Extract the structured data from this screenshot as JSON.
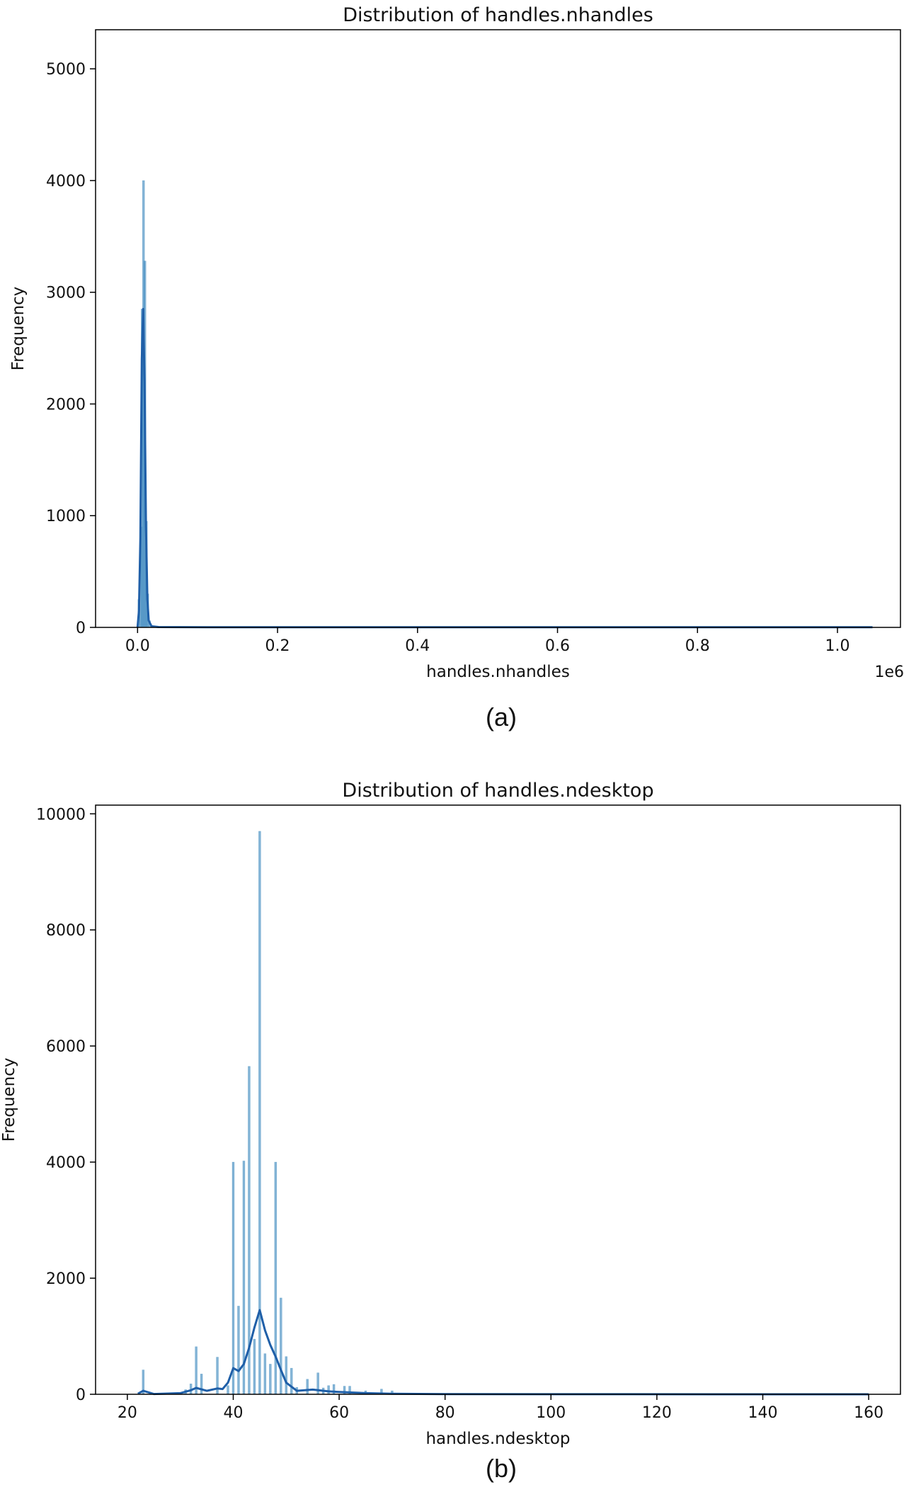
{
  "colors": {
    "bar": "#1f77b4",
    "kde": "#1f5fa8",
    "axis": "#000000"
  },
  "chart_data": [
    {
      "type": "bar",
      "title": "Distribution of handles.nhandles",
      "xlabel": "handles.nhandles",
      "ylabel": "Frequency",
      "x_offset_label": "1e6",
      "caption": "(a)",
      "xlim": [
        -60000,
        1090000
      ],
      "ylim": [
        0,
        5350
      ],
      "x_ticks": [
        0,
        200000,
        400000,
        600000,
        800000,
        1000000
      ],
      "x_tick_labels": [
        "0.0",
        "0.2",
        "0.4",
        "0.6",
        "0.8",
        "1.0"
      ],
      "y_ticks": [
        0,
        1000,
        2000,
        3000,
        4000,
        5000
      ],
      "y_tick_labels": [
        "0",
        "1000",
        "2000",
        "3000",
        "4000",
        "5000"
      ],
      "bars": [
        {
          "x": 2000,
          "value": 250
        },
        {
          "x": 4500,
          "value": 900
        },
        {
          "x": 6500,
          "value": 2850
        },
        {
          "x": 8500,
          "value": 4000
        },
        {
          "x": 10500,
          "value": 3280
        },
        {
          "x": 12500,
          "value": 950
        },
        {
          "x": 14500,
          "value": 300
        },
        {
          "x": 17000,
          "value": 60
        }
      ],
      "kde": {
        "x": [
          0,
          2000,
          4000,
          6000,
          8000,
          10000,
          12000,
          14000,
          16000,
          20000,
          30000,
          100000,
          1050000
        ],
        "y": [
          0,
          150,
          800,
          2400,
          2850,
          2200,
          900,
          250,
          60,
          10,
          3,
          1,
          1
        ]
      }
    },
    {
      "type": "bar",
      "title": "Distribution of handles.ndesktop",
      "xlabel": "handles.ndesktop",
      "ylabel": "Frequency",
      "caption": "(b)",
      "xlim": [
        14,
        166
      ],
      "ylim": [
        0,
        10150
      ],
      "x_ticks": [
        20,
        40,
        60,
        80,
        100,
        120,
        140,
        160
      ],
      "x_tick_labels": [
        "20",
        "40",
        "60",
        "80",
        "100",
        "120",
        "140",
        "160"
      ],
      "y_ticks": [
        0,
        2000,
        4000,
        6000,
        8000,
        10000
      ],
      "y_tick_labels": [
        "0",
        "2000",
        "4000",
        "6000",
        "8000",
        "10000"
      ],
      "bars": [
        {
          "x": 23,
          "value": 420
        },
        {
          "x": 31,
          "value": 80
        },
        {
          "x": 32,
          "value": 180
        },
        {
          "x": 33,
          "value": 820
        },
        {
          "x": 34,
          "value": 350
        },
        {
          "x": 37,
          "value": 640
        },
        {
          "x": 39,
          "value": 150
        },
        {
          "x": 40,
          "value": 4000
        },
        {
          "x": 41,
          "value": 1520
        },
        {
          "x": 42,
          "value": 4020
        },
        {
          "x": 43,
          "value": 5650
        },
        {
          "x": 44,
          "value": 950
        },
        {
          "x": 45,
          "value": 9700
        },
        {
          "x": 46,
          "value": 700
        },
        {
          "x": 47,
          "value": 520
        },
        {
          "x": 48,
          "value": 4000
        },
        {
          "x": 49,
          "value": 1660
        },
        {
          "x": 50,
          "value": 650
        },
        {
          "x": 51,
          "value": 450
        },
        {
          "x": 52,
          "value": 120
        },
        {
          "x": 54,
          "value": 260
        },
        {
          "x": 56,
          "value": 370
        },
        {
          "x": 57,
          "value": 110
        },
        {
          "x": 58,
          "value": 150
        },
        {
          "x": 59,
          "value": 170
        },
        {
          "x": 61,
          "value": 140
        },
        {
          "x": 62,
          "value": 140
        },
        {
          "x": 65,
          "value": 60
        },
        {
          "x": 68,
          "value": 90
        },
        {
          "x": 70,
          "value": 60
        }
      ],
      "kde": {
        "x": [
          22,
          23,
          25,
          30,
          32,
          33,
          35,
          37,
          38,
          39,
          40,
          41,
          42,
          43,
          44,
          45,
          46,
          47,
          48,
          49,
          50,
          52,
          55,
          58,
          60,
          65,
          70,
          80,
          100,
          160
        ],
        "y": [
          10,
          60,
          5,
          20,
          70,
          110,
          60,
          100,
          90,
          200,
          450,
          400,
          520,
          800,
          1150,
          1450,
          1100,
          850,
          650,
          420,
          200,
          60,
          80,
          50,
          40,
          20,
          10,
          3,
          1,
          0
        ]
      }
    }
  ]
}
